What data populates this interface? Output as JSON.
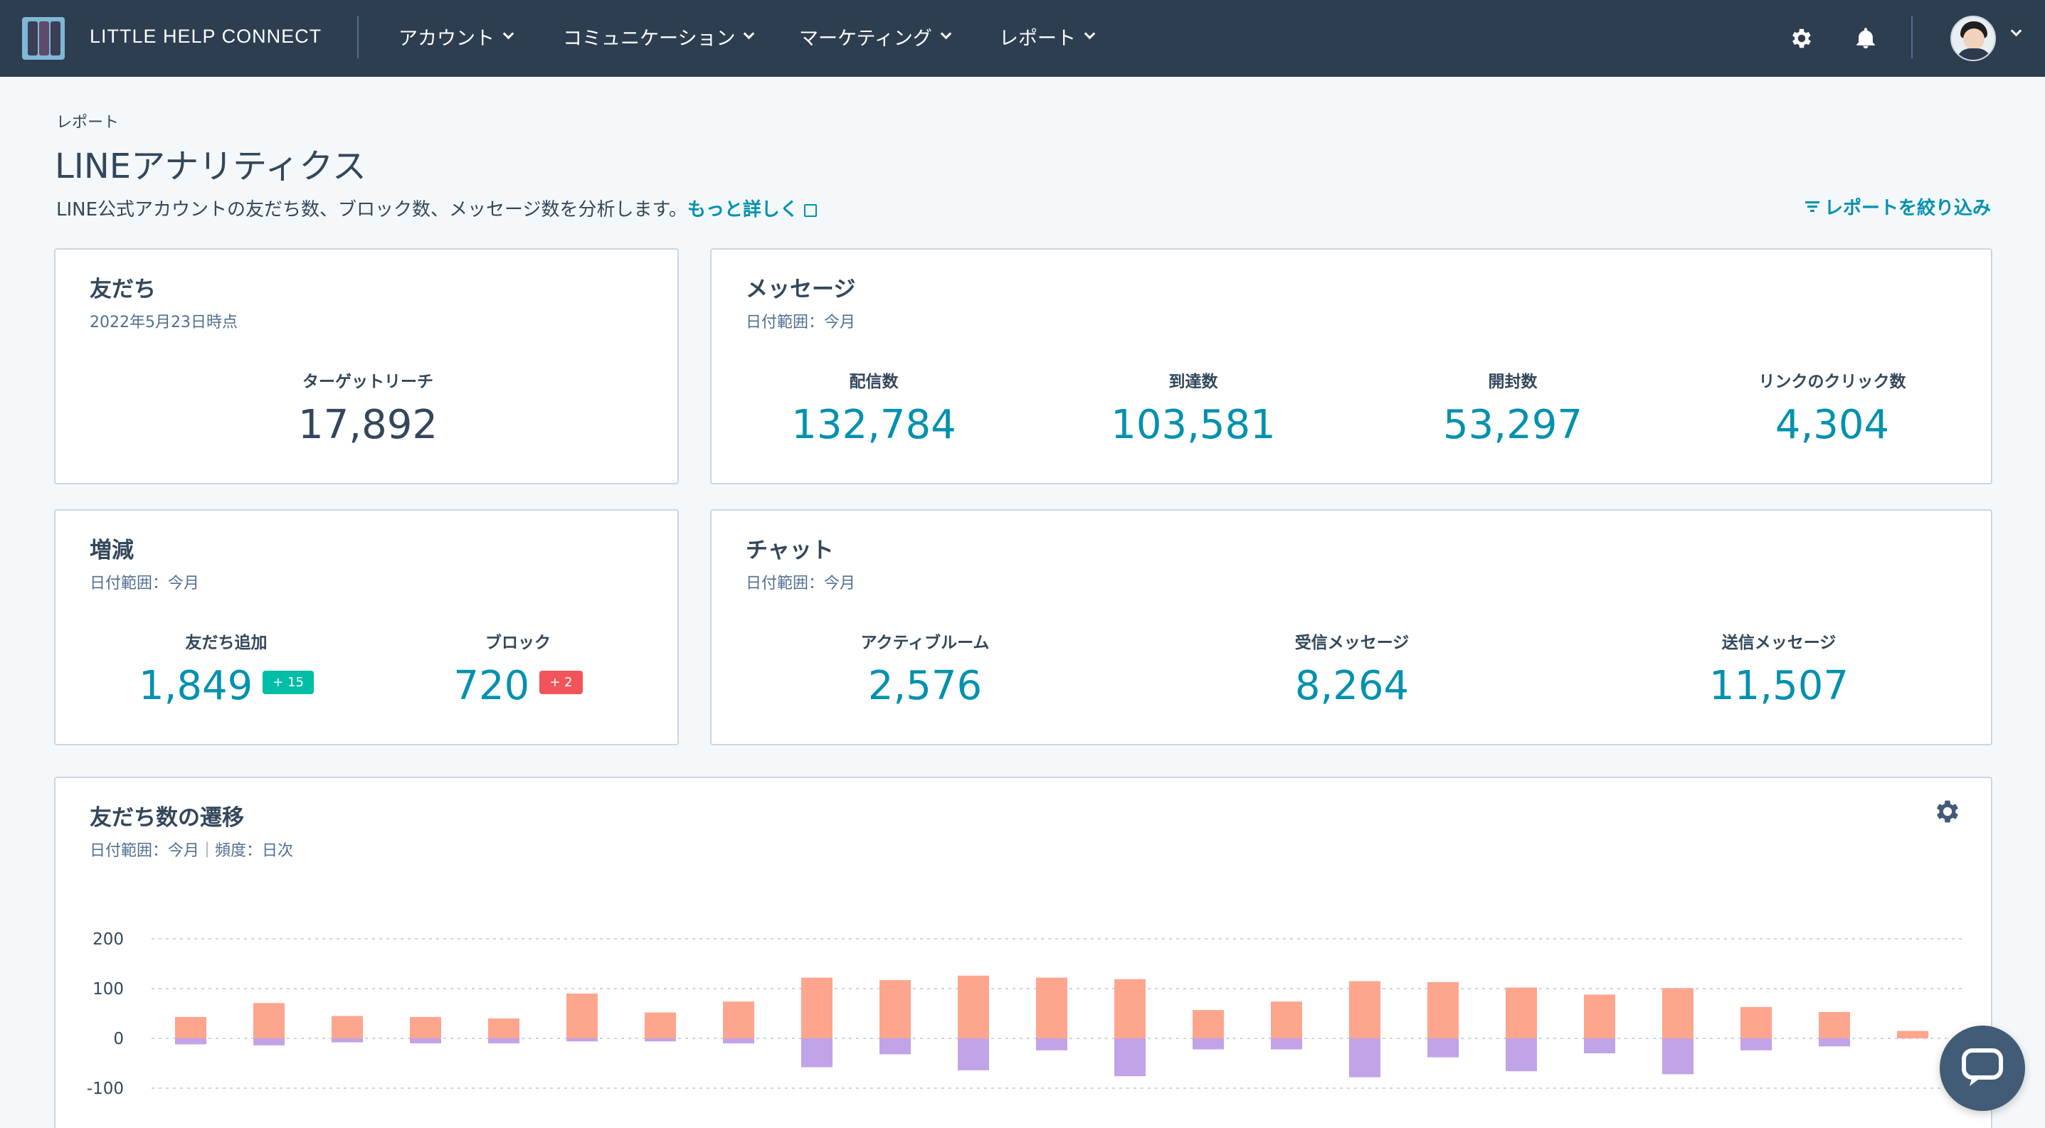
{
  "topbar": {
    "brand": "LITTLE HELP CONNECT",
    "nav": [
      {
        "label": "アカウント"
      },
      {
        "label": "コミュニケーション"
      },
      {
        "label": "マーケティング"
      },
      {
        "label": "レポート"
      }
    ],
    "icons": [
      "gear-icon",
      "bell-icon",
      "avatar"
    ]
  },
  "header": {
    "breadcrumb": "レポート",
    "title": "LINEアナリティクス",
    "description": "LINE公式アカウントの友だち数、ブロック数、メッセージ数を分析します。",
    "learn_more": "もっと詳しく",
    "filter": "レポートを絞り込み"
  },
  "friends_card": {
    "title": "友だち",
    "subtitle": "2022年5月23日時点",
    "target_reach_label": "ターゲットリーチ",
    "target_reach_value": "17,892"
  },
  "messages_card": {
    "title": "メッセージ",
    "subtitle": "日付範囲：今月",
    "stats": [
      {
        "label": "配信数",
        "value": "132,784"
      },
      {
        "label": "到達数",
        "value": "103,581"
      },
      {
        "label": "開封数",
        "value": "53,297"
      },
      {
        "label": "リンクのクリック数",
        "value": "4,304"
      }
    ]
  },
  "change_card": {
    "title": "増減",
    "subtitle": "日付範囲：今月",
    "friend_add_label": "友だち追加",
    "friend_add_value": "1,849",
    "friend_add_badge": "+ 15",
    "block_label": "ブロック",
    "block_value": "720",
    "block_badge": "+ 2"
  },
  "chat_card": {
    "title": "チャット",
    "subtitle": "日付範囲：今月",
    "stats": [
      {
        "label": "アクティブルーム",
        "value": "2,576"
      },
      {
        "label": "受信メッセージ",
        "value": "8,264"
      },
      {
        "label": "送信メッセージ",
        "value": "11,507"
      }
    ]
  },
  "chart_card": {
    "title": "友だち数の遷移",
    "subtitle": "日付範囲：今月｜頻度：日次"
  },
  "colors": {
    "nav_bg": "#2d3e50",
    "accent": "#0091ae",
    "positive_bar": "#fea58e",
    "negative_bar": "#c1a3e8",
    "badge_green": "#00bda5",
    "badge_red": "#f2545b"
  },
  "chart_data": {
    "type": "bar",
    "title": "友だち数の遷移",
    "ylim": [
      -100,
      200
    ],
    "yticks": [
      "200",
      "100",
      "0",
      "-100"
    ],
    "ytick_values": [
      200,
      100,
      0,
      -100
    ],
    "grid": true,
    "stacked": true,
    "series": [
      {
        "values": [
          43,
          71,
          45,
          43,
          40,
          90,
          52,
          74,
          122,
          117,
          126,
          122,
          119,
          57,
          74,
          115,
          113,
          102,
          88,
          101,
          63,
          53,
          15
        ]
      },
      {
        "values": [
          -12,
          -14,
          -8,
          -10,
          -10,
          -6,
          -6,
          -10,
          -58,
          -32,
          -64,
          -24,
          -76,
          -22,
          -22,
          -78,
          -38,
          -66,
          -30,
          -72,
          -24,
          -16,
          0
        ]
      }
    ]
  }
}
